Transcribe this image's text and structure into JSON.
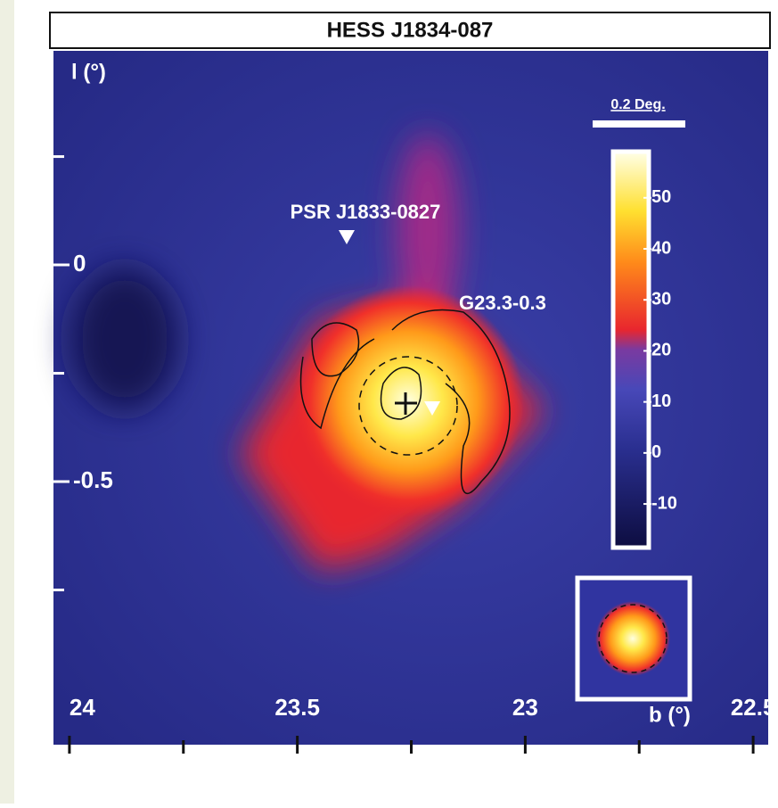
{
  "chart_data": {
    "type": "skymap",
    "title": "HESS J1834-087",
    "xlabel": "b (°)",
    "ylabel": "l (°)",
    "xlim": [
      24.035,
      22.467
    ],
    "ylim": [
      0.494,
      -1.107
    ],
    "xticks": [
      24,
      23.5,
      23,
      22.5
    ],
    "yticks": [
      0,
      -0.5
    ],
    "xminorticks": [
      23.75,
      23.25,
      22.75
    ],
    "yminorticks": [
      0.25,
      -0.25,
      -0.75
    ],
    "annotations": [
      "PSR J1833-0827",
      "G23.3-0.3"
    ],
    "scale_label": "0.2 Deg.",
    "clim": [
      -18.2,
      58.7
    ],
    "cticks": [
      50,
      40,
      30,
      20,
      10,
      0,
      -10
    ]
  }
}
